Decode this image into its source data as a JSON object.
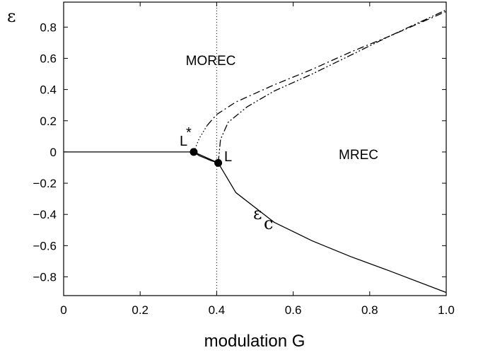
{
  "chart_data": {
    "type": "line",
    "xlabel": "modulation G",
    "ylabel": "ε",
    "xlim": [
      0,
      1.0
    ],
    "ylim": [
      -0.92,
      0.96
    ],
    "x_ticks": [
      "0",
      "0.2",
      "0.4",
      "0.6",
      "0.8",
      "1.0"
    ],
    "y_ticks": [
      "−0.8",
      "−0.6",
      "−0.4",
      "−0.2",
      "0",
      "0.2",
      "0.4",
      "0.6",
      "0.8"
    ],
    "x_tick_values": [
      0,
      0.2,
      0.4,
      0.6,
      0.8,
      1.0
    ],
    "y_tick_values": [
      -0.8,
      -0.6,
      -0.4,
      -0.2,
      0,
      0.2,
      0.4,
      0.6,
      0.8
    ],
    "grid": false,
    "vertical_reference": {
      "x": 0.4,
      "style": "dotted"
    },
    "series": [
      {
        "style": "solid",
        "x": [
          0,
          0.2,
          0.34,
          0.404
        ],
        "y": [
          0,
          0,
          0,
          -0.07
        ]
      },
      {
        "style": "solid",
        "x": [
          0.404,
          0.45,
          0.55,
          0.65,
          0.75,
          0.85,
          1.0
        ],
        "y": [
          -0.07,
          -0.26,
          -0.45,
          -0.57,
          -0.67,
          -0.76,
          -0.9
        ]
      },
      {
        "style": "solid",
        "x": [
          0.34,
          0.355,
          0.37,
          0.385,
          0.404
        ],
        "y": [
          0,
          -0.025,
          -0.04,
          -0.055,
          -0.07
        ]
      },
      {
        "style": "dotted",
        "x": [
          0.34,
          0.355,
          0.375
        ],
        "y": [
          0,
          0.09,
          0.17
        ]
      },
      {
        "style": "dash-dot",
        "x": [
          0.375,
          0.4,
          0.45,
          0.55,
          0.65,
          0.75,
          0.85,
          1.0
        ],
        "y": [
          0.17,
          0.24,
          0.32,
          0.43,
          0.53,
          0.64,
          0.74,
          0.9
        ]
      },
      {
        "style": "dash-dot-dot",
        "x": [
          0.404,
          0.41,
          0.43,
          0.48,
          0.55,
          0.65,
          0.75,
          0.85,
          1.0
        ],
        "y": [
          -0.07,
          0.08,
          0.19,
          0.29,
          0.39,
          0.5,
          0.62,
          0.74,
          0.91
        ]
      }
    ],
    "points": [
      {
        "name": "L*",
        "x": 0.34,
        "y": 0.0
      },
      {
        "name": "L",
        "x": 0.404,
        "y": -0.07
      }
    ],
    "annotations": [
      {
        "text": "MOREC",
        "x": 0.39,
        "y": 0.55
      },
      {
        "text": "MREC",
        "x": 0.77,
        "y": -0.05
      },
      {
        "text": "εc",
        "x": 0.52,
        "y": -0.5
      }
    ]
  },
  "labels": {
    "point_L": "L",
    "point_Lstar": "L",
    "star": "*",
    "morec": "MOREC",
    "mrec": "MREC",
    "eps_c_main": "ε",
    "eps_c_sub": "c"
  }
}
